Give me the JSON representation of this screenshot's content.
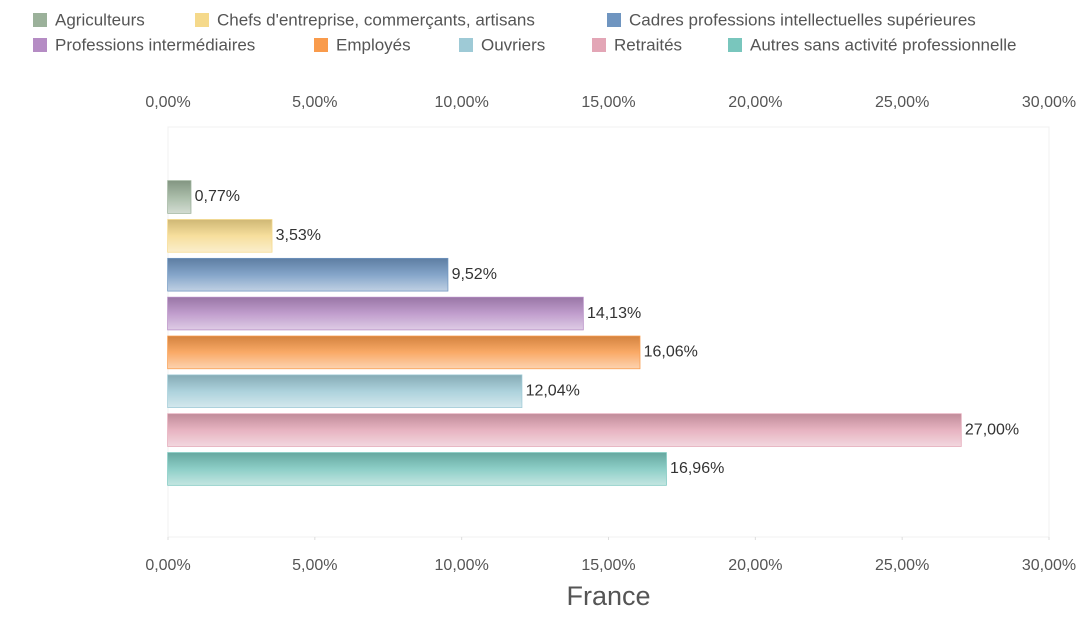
{
  "chart_data": {
    "type": "bar",
    "orientation": "horizontal",
    "categories": [
      "France"
    ],
    "series": [
      {
        "name": "Agriculteurs",
        "color": "#9bb19a",
        "values": [
          0.77
        ],
        "value_labels": [
          "0,77%"
        ]
      },
      {
        "name": "Chefs d'entreprise, commerçants, artisans",
        "color": "#f5d98b",
        "values": [
          3.53
        ],
        "value_labels": [
          "3,53%"
        ]
      },
      {
        "name": "Cadres professions intellectuelles supérieures",
        "color": "#6f95c0",
        "values": [
          9.52
        ],
        "value_labels": [
          "9,52%"
        ]
      },
      {
        "name": "Professions intermédiaires",
        "color": "#b58cc4",
        "values": [
          14.13
        ],
        "value_labels": [
          "14,13%"
        ]
      },
      {
        "name": "Employés",
        "color": "#f99b4c",
        "values": [
          16.06
        ],
        "value_labels": [
          "16,06%"
        ]
      },
      {
        "name": "Ouvriers",
        "color": "#9ecad6",
        "values": [
          12.04
        ],
        "value_labels": [
          "12,04%"
        ]
      },
      {
        "name": "Retraités",
        "color": "#e3a6b6",
        "values": [
          27.0
        ],
        "value_labels": [
          "27,00%"
        ]
      },
      {
        "name": "Autres sans activité professionnelle",
        "color": "#79c6bd",
        "values": [
          16.96
        ],
        "value_labels": [
          "16,96%"
        ]
      }
    ],
    "xlim": [
      0,
      30
    ],
    "xticks": [
      {
        "value": 0,
        "label": "0,00%"
      },
      {
        "value": 5,
        "label": "5,00%"
      },
      {
        "value": 10,
        "label": "10,00%"
      },
      {
        "value": 15,
        "label": "15,00%"
      },
      {
        "value": 20,
        "label": "20,00%"
      },
      {
        "value": 25,
        "label": "25,00%"
      },
      {
        "value": 30,
        "label": "30,00%"
      }
    ],
    "legend": "top"
  }
}
